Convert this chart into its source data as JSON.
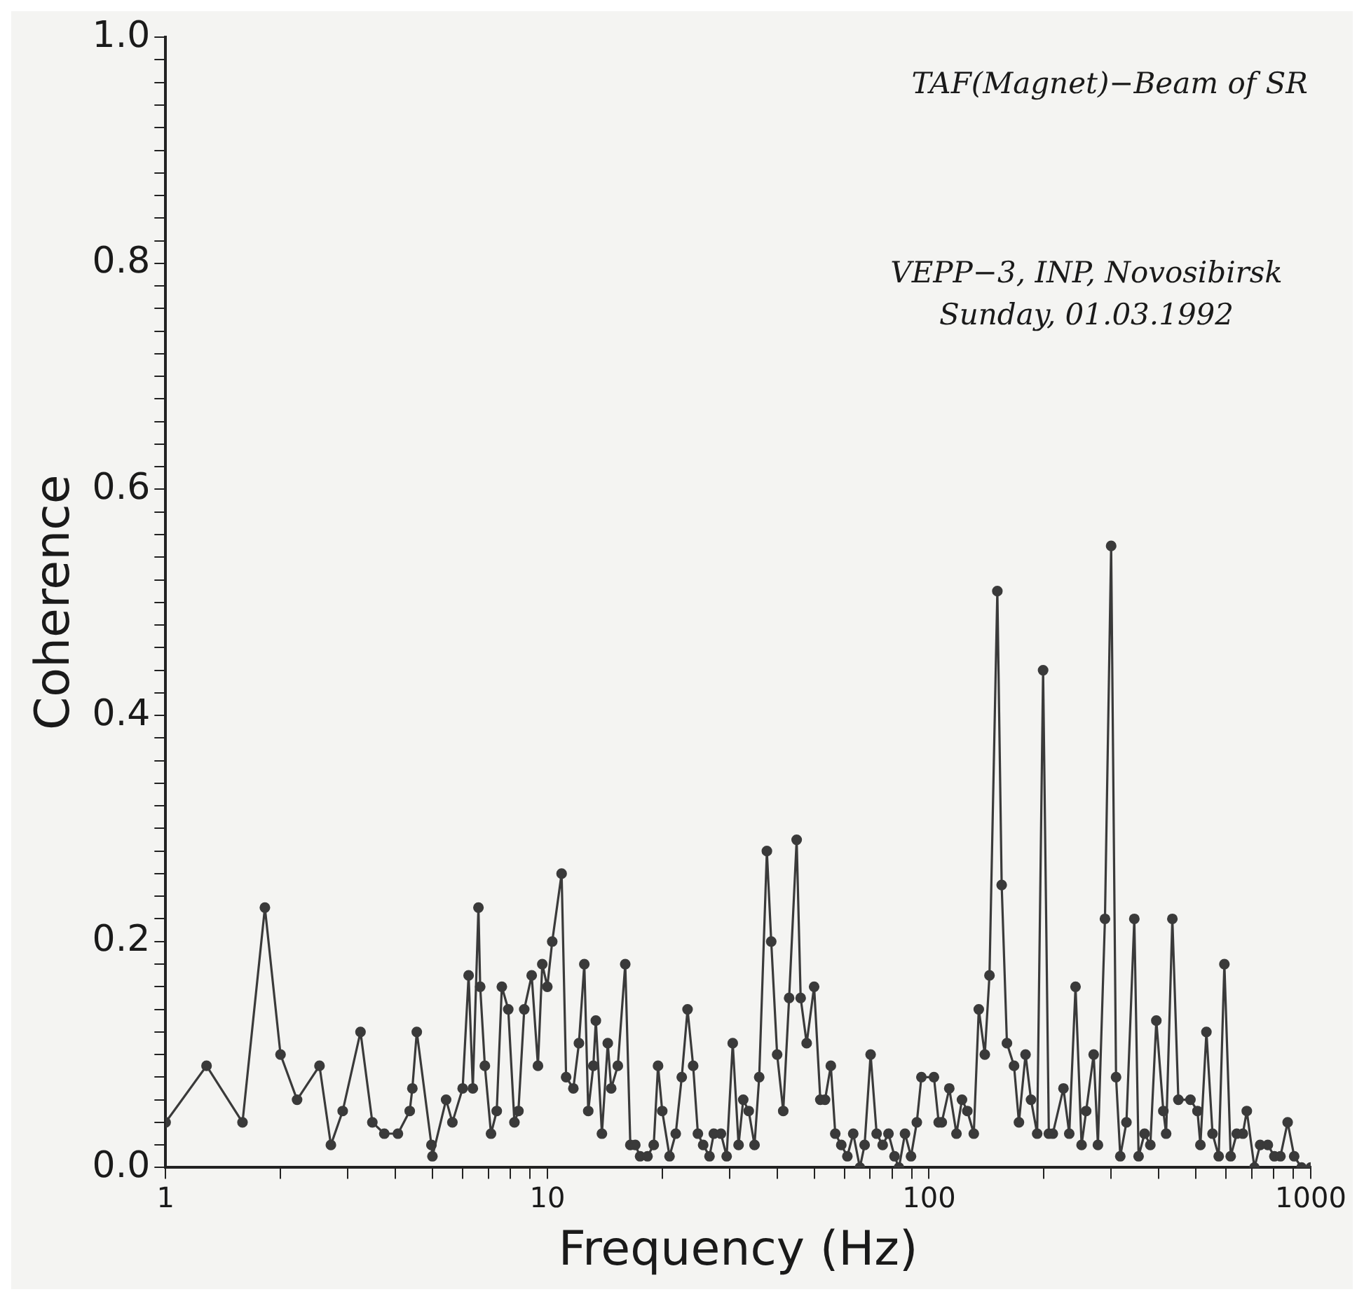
{
  "chart_data": {
    "type": "line",
    "xlabel": "Frequency (Hz)",
    "ylabel": "Coherence",
    "annotations": [
      "TAF(Magnet)−Beam of SR",
      "VEPP−3, INP, Novosibirsk",
      "Sunday, 01.03.1992"
    ],
    "log": "x",
    "grid": false,
    "marker": "circle",
    "line_style": "solid",
    "xlim": [
      1,
      1000
    ],
    "ylim": [
      0,
      1.0
    ],
    "xticks": [
      1,
      {
        "value": 2,
        "label": null
      },
      {
        "value": 3,
        "label": null
      },
      {
        "value": 4,
        "label": null
      },
      {
        "value": 5,
        "label": null
      },
      {
        "value": 6,
        "label": null
      },
      {
        "value": 7,
        "label": null
      },
      {
        "value": 8,
        "label": null
      },
      {
        "value": 9,
        "label": null
      },
      10,
      {
        "value": 20,
        "label": null
      },
      {
        "value": 30,
        "label": null
      },
      {
        "value": 40,
        "label": null
      },
      {
        "value": 50,
        "label": null
      },
      {
        "value": 60,
        "label": null
      },
      {
        "value": 70,
        "label": null
      },
      {
        "value": 80,
        "label": null
      },
      {
        "value": 90,
        "label": null
      },
      100,
      {
        "value": 200,
        "label": null
      },
      {
        "value": 300,
        "label": null
      },
      {
        "value": 400,
        "label": null
      },
      {
        "value": 500,
        "label": null
      },
      {
        "value": 600,
        "label": null
      },
      {
        "value": 700,
        "label": null
      },
      {
        "value": 800,
        "label": null
      },
      {
        "value": 900,
        "label": null
      },
      1000
    ],
    "yticks": [
      {
        "value": 0,
        "label": "0.0"
      },
      {
        "value": 0.02,
        "label": null
      },
      {
        "value": 0.04,
        "label": null
      },
      {
        "value": 0.06,
        "label": null
      },
      {
        "value": 0.08,
        "label": null
      },
      {
        "value": 0.1,
        "label": null
      },
      {
        "value": 0.12,
        "label": null
      },
      {
        "value": 0.14,
        "label": null
      },
      {
        "value": 0.16,
        "label": null
      },
      {
        "value": 0.18,
        "label": null
      },
      {
        "value": 0.2,
        "label": "0.2"
      },
      {
        "value": 0.22,
        "label": null
      },
      {
        "value": 0.24,
        "label": null
      },
      {
        "value": 0.26,
        "label": null
      },
      {
        "value": 0.28,
        "label": null
      },
      {
        "value": 0.3,
        "label": null
      },
      {
        "value": 0.32,
        "label": null
      },
      {
        "value": 0.34,
        "label": null
      },
      {
        "value": 0.36,
        "label": null
      },
      {
        "value": 0.38,
        "label": null
      },
      {
        "value": 0.4,
        "label": "0.4"
      },
      {
        "value": 0.42,
        "label": null
      },
      {
        "value": 0.44,
        "label": null
      },
      {
        "value": 0.46,
        "label": null
      },
      {
        "value": 0.48,
        "label": null
      },
      {
        "value": 0.5,
        "label": null
      },
      {
        "value": 0.52,
        "label": null
      },
      {
        "value": 0.54,
        "label": null
      },
      {
        "value": 0.56,
        "label": null
      },
      {
        "value": 0.58,
        "label": null
      },
      {
        "value": 0.6,
        "label": "0.6"
      },
      {
        "value": 0.62,
        "label": null
      },
      {
        "value": 0.64,
        "label": null
      },
      {
        "value": 0.66,
        "label": null
      },
      {
        "value": 0.68,
        "label": null
      },
      {
        "value": 0.7,
        "label": null
      },
      {
        "value": 0.72,
        "label": null
      },
      {
        "value": 0.74,
        "label": null
      },
      {
        "value": 0.76,
        "label": null
      },
      {
        "value": 0.78,
        "label": null
      },
      {
        "value": 0.8,
        "label": "0.8"
      },
      {
        "value": 0.82,
        "label": null
      },
      {
        "value": 0.84,
        "label": null
      },
      {
        "value": 0.86,
        "label": null
      },
      {
        "value": 0.88,
        "label": null
      },
      {
        "value": 0.9,
        "label": null
      },
      {
        "value": 0.92,
        "label": null
      },
      {
        "value": 0.94,
        "label": null
      },
      {
        "value": 0.96,
        "label": null
      },
      {
        "value": 0.98,
        "label": null
      },
      {
        "value": 1.0,
        "label": "1.0"
      }
    ],
    "x": [
      1,
      1.28,
      1.59,
      1.82,
      2.0,
      2.21,
      2.53,
      2.71,
      2.91,
      3.24,
      3.48,
      3.74,
      4.06,
      4.36,
      4.43,
      4.55,
      4.97,
      5.0,
      5.43,
      5.64,
      6.0,
      6.22,
      6.38,
      6.6,
      6.67,
      6.86,
      7.12,
      7.37,
      7.6,
      7.9,
      8.2,
      8.4,
      8.7,
      9.1,
      9.45,
      9.7,
      10.0,
      10.3,
      10.9,
      11.2,
      11.7,
      12.1,
      12.5,
      12.8,
      13.2,
      13.4,
      13.9,
      14.4,
      14.7,
      15.3,
      16.0,
      16.5,
      17.0,
      17.5,
      18.3,
      19.0,
      19.5,
      20.0,
      20.9,
      21.7,
      22.5,
      23.3,
      24.1,
      24.8,
      25.6,
      26.6,
      27.3,
      28.5,
      29.5,
      30.6,
      31.7,
      32.6,
      33.7,
      34.9,
      35.9,
      37.6,
      38.6,
      40.0,
      41.5,
      43.0,
      45.0,
      46.1,
      47.8,
      50.0,
      51.9,
      53.4,
      55.3,
      56.8,
      58.9,
      61.1,
      63.3,
      65.9,
      67.8,
      70.3,
      72.9,
      75.6,
      78.3,
      81.2,
      83.4,
      86.5,
      89.7,
      92.9,
      95.5,
      103,
      106,
      108,
      113,
      118,
      122,
      126,
      131,
      135,
      140,
      144,
      151,
      155,
      160,
      167,
      172,
      179,
      185,
      192,
      199,
      206,
      211,
      225,
      233,
      242,
      251,
      258,
      270,
      277,
      289,
      300,
      309,
      317,
      329,
      345,
      354,
      367,
      380,
      394,
      411,
      418,
      434,
      450,
      484,
      505,
      514,
      533,
      553,
      574,
      594,
      617,
      640,
      664,
      680,
      712,
      737,
      772,
      803,
      833,
      870,
      905,
      946,
      1000
    ],
    "series": [
      {
        "color": "#3a3a3a",
        "values": [
          0.04,
          0.09,
          0.04,
          0.23,
          0.1,
          0.06,
          0.09,
          0.02,
          0.05,
          0.12,
          0.04,
          0.03,
          0.03,
          0.05,
          0.07,
          0.12,
          0.02,
          0.01,
          0.06,
          0.04,
          0.07,
          0.17,
          0.07,
          0.23,
          0.16,
          0.09,
          0.03,
          0.05,
          0.16,
          0.14,
          0.04,
          0.05,
          0.14,
          0.17,
          0.09,
          0.18,
          0.16,
          0.2,
          0.26,
          0.08,
          0.07,
          0.11,
          0.18,
          0.05,
          0.09,
          0.13,
          0.03,
          0.11,
          0.07,
          0.09,
          0.18,
          0.02,
          0.02,
          0.01,
          0.01,
          0.02,
          0.09,
          0.05,
          0.01,
          0.03,
          0.08,
          0.14,
          0.09,
          0.03,
          0.02,
          0.01,
          0.03,
          0.03,
          0.01,
          0.11,
          0.02,
          0.06,
          0.05,
          0.02,
          0.08,
          0.28,
          0.2,
          0.1,
          0.05,
          0.15,
          0.29,
          0.15,
          0.11,
          0.16,
          0.06,
          0.06,
          0.09,
          0.03,
          0.02,
          0.01,
          0.03,
          0.0,
          0.02,
          0.1,
          0.03,
          0.02,
          0.03,
          0.01,
          0.0,
          0.03,
          0.01,
          0.04,
          0.08,
          0.08,
          0.04,
          0.04,
          0.07,
          0.03,
          0.06,
          0.05,
          0.03,
          0.14,
          0.1,
          0.17,
          0.51,
          0.25,
          0.11,
          0.09,
          0.04,
          0.1,
          0.06,
          0.03,
          0.44,
          0.03,
          0.03,
          0.07,
          0.03,
          0.16,
          0.02,
          0.05,
          0.1,
          0.02,
          0.22,
          0.55,
          0.08,
          0.01,
          0.04,
          0.22,
          0.01,
          0.03,
          0.02,
          0.13,
          0.05,
          0.03,
          0.22,
          0.06,
          0.06,
          0.05,
          0.02,
          0.12,
          0.03,
          0.01,
          0.18,
          0.01,
          0.03,
          0.03,
          0.05,
          0.0,
          0.02,
          0.02,
          0.01,
          0.01,
          0.04,
          0.01,
          0.0,
          0.0
        ]
      }
    ]
  }
}
